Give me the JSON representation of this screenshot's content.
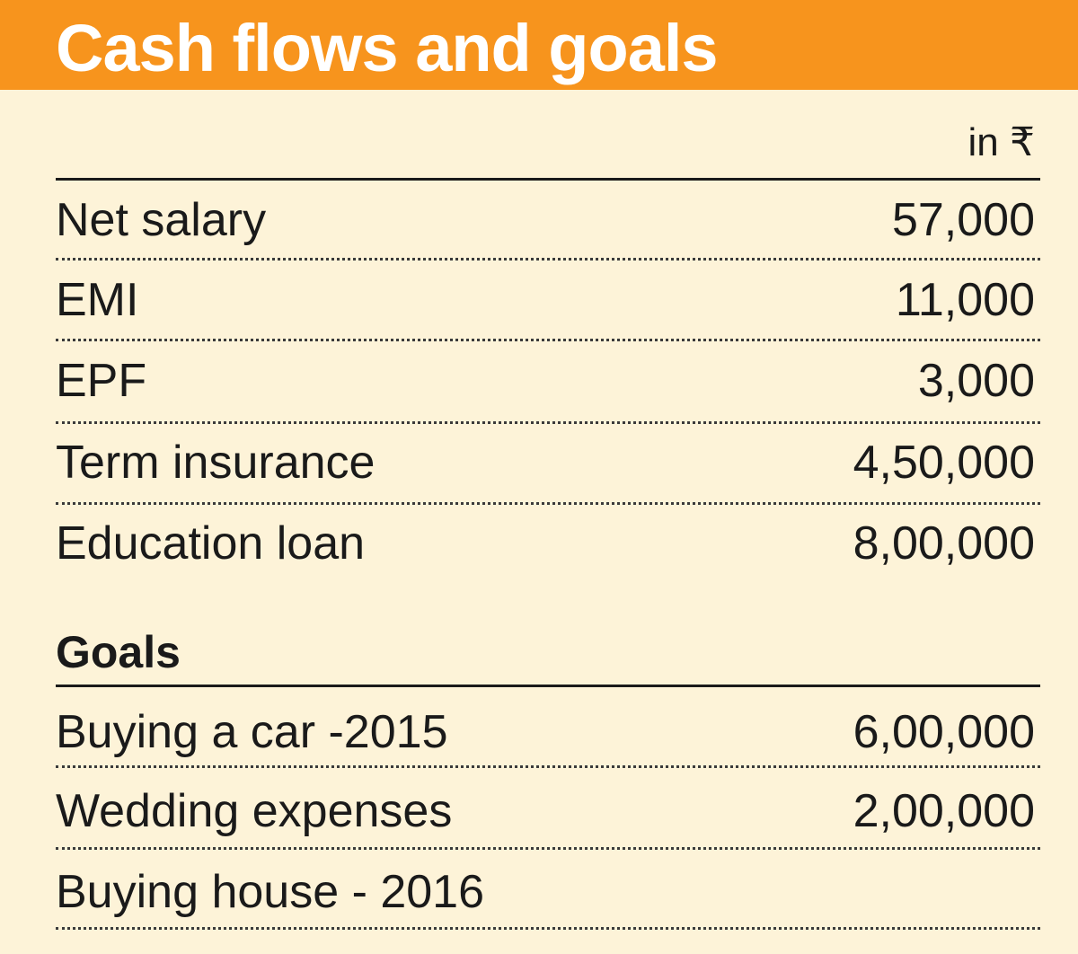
{
  "title": "Cash flows and goals",
  "unit_label": "in ₹",
  "colors": {
    "header_bg": "#f7941d",
    "page_bg": "#fdf3d8",
    "text": "#1a1a1a"
  },
  "chart_data": {
    "type": "table",
    "title": "Cash flows and goals",
    "unit": "in ₹",
    "sections": [
      {
        "heading": "",
        "rows": [
          {
            "label": "Net salary",
            "value": "57,000"
          },
          {
            "label": "EMI",
            "value": "11,000"
          },
          {
            "label": "EPF",
            "value": "3,000"
          },
          {
            "label": "Term insurance",
            "value": "4,50,000"
          },
          {
            "label": "Education loan",
            "value": "8,00,000"
          }
        ]
      },
      {
        "heading": "Goals",
        "rows": [
          {
            "label": "Buying a car -2015",
            "value": "6,00,000"
          },
          {
            "label": "Wedding expenses",
            "value": "2,00,000"
          },
          {
            "label": "Buying house - 2016",
            "value": ""
          }
        ]
      }
    ]
  }
}
